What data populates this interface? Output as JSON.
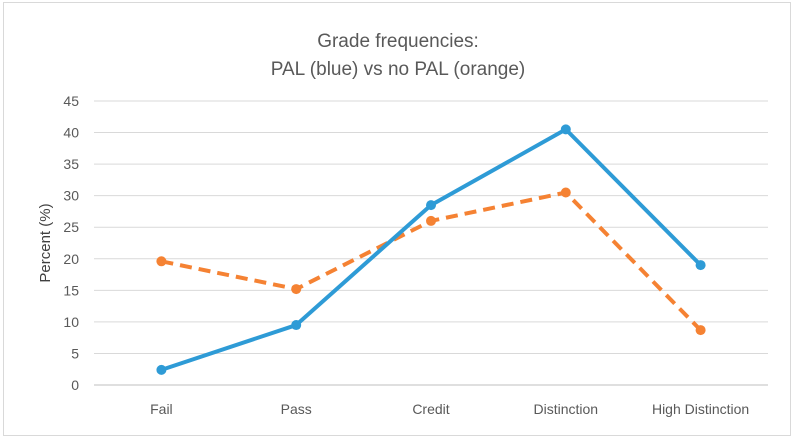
{
  "chart_data": {
    "type": "line",
    "title": [
      "Grade frequencies:",
      "PAL (blue) vs no PAL (orange)"
    ],
    "xlabel": "",
    "ylabel": "Percent (%)",
    "ylim": [
      0,
      45
    ],
    "yticks": [
      0,
      5,
      10,
      15,
      20,
      25,
      30,
      35,
      40,
      45
    ],
    "grid": true,
    "categories": [
      "Fail",
      "Pass",
      "Credit",
      "Distinction",
      "High Distinction"
    ],
    "series": [
      {
        "name": "PAL",
        "color": "#2e9bd6",
        "dash": "solid",
        "values": [
          2.4,
          9.5,
          28.5,
          40.5,
          19.0
        ]
      },
      {
        "name": "no PAL",
        "color": "#f58233",
        "dash": "dashed",
        "values": [
          19.6,
          15.2,
          26.0,
          30.5,
          8.7
        ]
      }
    ]
  }
}
